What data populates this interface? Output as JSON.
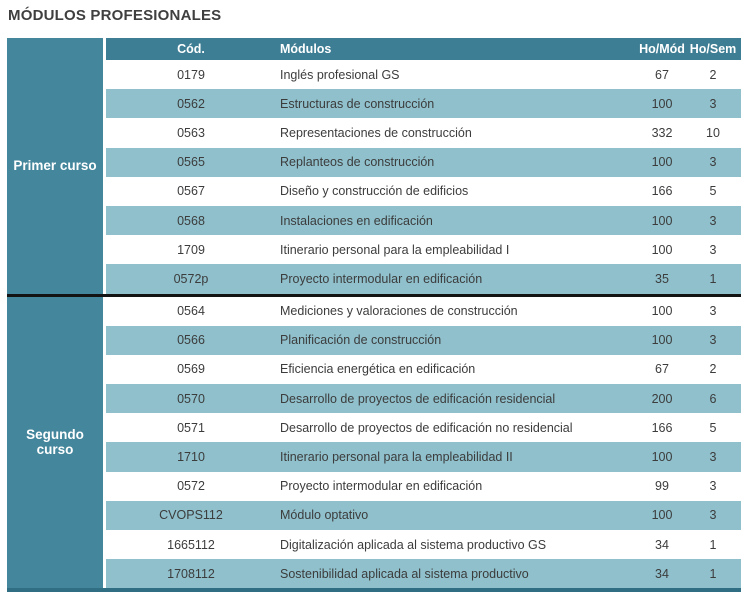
{
  "page_title": "MÓDULOS PROFESIONALES",
  "colors": {
    "header_bg": "#3e7e94",
    "side_bg": "#44869c",
    "stripe_bg": "#8fc0cc",
    "row_bg": "#ffffff",
    "divider": "#131313",
    "bottom_border": "#306e83",
    "header_text": "#ffffff",
    "body_text": "#3c3c3c",
    "title_text": "#3f3f3f"
  },
  "table": {
    "headers": {
      "code": "Cód.",
      "module": "Módulos",
      "ho_mod": "Ho/Mód",
      "ho_sem": "Ho/Sem"
    },
    "sections": [
      {
        "label": "Primer curso",
        "rows": [
          {
            "code": "0179",
            "module": "Inglés profesional GS",
            "ho_mod": "67",
            "ho_sem": "2"
          },
          {
            "code": "0562",
            "module": "Estructuras de construcción",
            "ho_mod": "100",
            "ho_sem": "3"
          },
          {
            "code": "0563",
            "module": "Representaciones de construcción",
            "ho_mod": "332",
            "ho_sem": "10"
          },
          {
            "code": "0565",
            "module": "Replanteos de construcción",
            "ho_mod": "100",
            "ho_sem": "3"
          },
          {
            "code": "0567",
            "module": "Diseño y construcción de edificios",
            "ho_mod": "166",
            "ho_sem": "5"
          },
          {
            "code": "0568",
            "module": "Instalaciones en edificación",
            "ho_mod": "100",
            "ho_sem": "3"
          },
          {
            "code": "1709",
            "module": "Itinerario personal para la empleabilidad I",
            "ho_mod": "100",
            "ho_sem": "3"
          },
          {
            "code": "0572p",
            "module": "Proyecto intermodular en edificación",
            "ho_mod": "35",
            "ho_sem": "1"
          }
        ]
      },
      {
        "label": "Segundo curso",
        "rows": [
          {
            "code": "0564",
            "module": "Mediciones y valoraciones de construcción",
            "ho_mod": "100",
            "ho_sem": "3"
          },
          {
            "code": "0566",
            "module": "Planificación de construcción",
            "ho_mod": "100",
            "ho_sem": "3"
          },
          {
            "code": "0569",
            "module": "Eficiencia energética en edificación",
            "ho_mod": "67",
            "ho_sem": "2"
          },
          {
            "code": "0570",
            "module": "Desarrollo de proyectos de edificación residencial",
            "ho_mod": "200",
            "ho_sem": "6"
          },
          {
            "code": "0571",
            "module": "Desarrollo de proyectos de edificación no residencial",
            "ho_mod": "166",
            "ho_sem": "5"
          },
          {
            "code": "1710",
            "module": "Itinerario personal para la empleabilidad II",
            "ho_mod": "100",
            "ho_sem": "3"
          },
          {
            "code": "0572",
            "module": "Proyecto intermodular en edificación",
            "ho_mod": "99",
            "ho_sem": "3"
          },
          {
            "code": "CVOPS112",
            "module": "Módulo optativo",
            "ho_mod": "100",
            "ho_sem": "3"
          },
          {
            "code": "1665112",
            "module": "Digitalización aplicada al sistema productivo GS",
            "ho_mod": "34",
            "ho_sem": "1"
          },
          {
            "code": "1708112",
            "module": "Sostenibilidad aplicada al sistema productivo",
            "ho_mod": "34",
            "ho_sem": "1"
          }
        ]
      }
    ]
  }
}
